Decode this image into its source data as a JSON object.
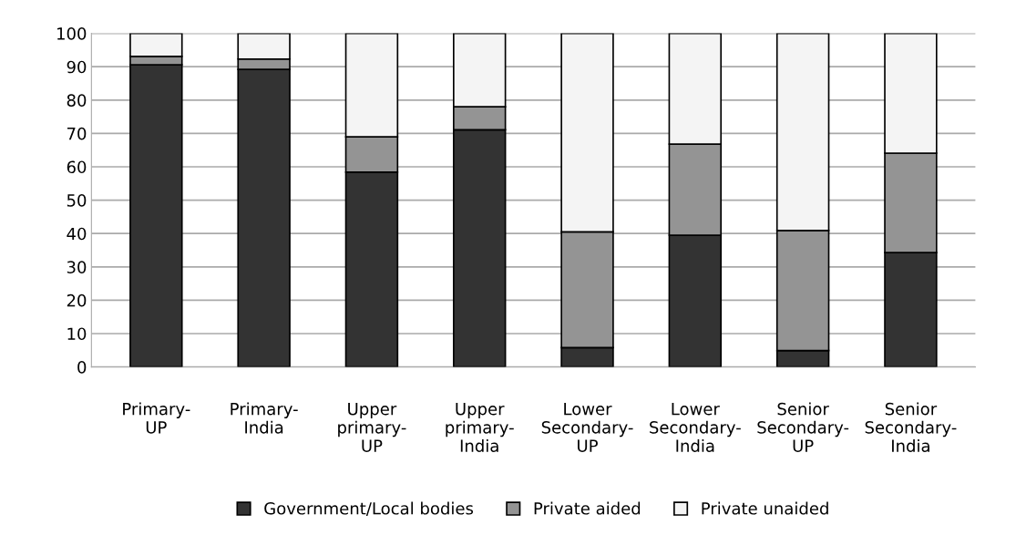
{
  "chart_data": {
    "type": "bar",
    "stacked": true,
    "categories": [
      "Primary-\nUP",
      "Primary-\nIndia",
      "Upper\nprimary-\nUP",
      "Upper\nprimary-\nIndia",
      "Lower\nSecondary-\nUP",
      "Lower\nSecondary-\nIndia",
      "Senior\nSecondary-\nUP",
      "Senior\nSecondary-\nIndia"
    ],
    "series": [
      {
        "name": "Government/Local bodies",
        "color": "#333333",
        "values": [
          90.6,
          89.2,
          58.4,
          71.1,
          5.8,
          39.5,
          4.9,
          34.3
        ]
      },
      {
        "name": "Private aided",
        "color": "#949494",
        "values": [
          2.5,
          3.1,
          10.6,
          6.9,
          34.7,
          27.3,
          36.0,
          29.8
        ]
      },
      {
        "name": "Private unaided",
        "color": "#f4f4f4",
        "values": [
          6.9,
          7.7,
          31.0,
          22.0,
          59.5,
          33.2,
          59.1,
          35.9
        ]
      }
    ],
    "ylim": [
      0,
      100
    ],
    "yticks": [
      0,
      10,
      20,
      30,
      40,
      50,
      60,
      70,
      80,
      90,
      100
    ],
    "grid": "y",
    "legend": "bottom"
  }
}
